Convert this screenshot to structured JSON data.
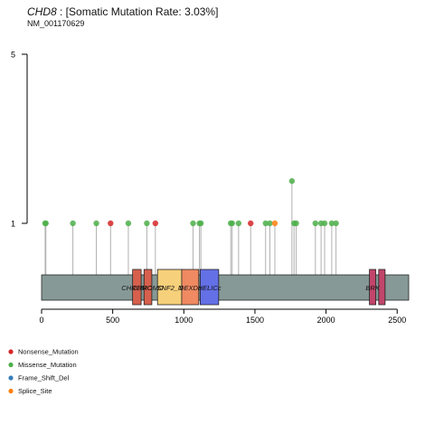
{
  "header": {
    "gene": "CHD8",
    "rate_text": ": [Somatic Mutation Rate: 3.03%]",
    "transcript": "NM_001170629"
  },
  "chart_data": {
    "type": "lollipop",
    "xlim": [
      0,
      2581
    ],
    "x_ticks": [
      0,
      500,
      1000,
      1500,
      2000,
      2500
    ],
    "y_ticks": [
      1,
      5
    ],
    "ylim": [
      0,
      5
    ],
    "legend": [
      {
        "name": "Nonsense_Mutation",
        "color": "#d62728"
      },
      {
        "name": "Missense_Mutation",
        "color": "#4daf4a"
      },
      {
        "name": "Frame_Shift_Del",
        "color": "#377eb8"
      },
      {
        "name": "Splice_Site",
        "color": "#ff7f0e"
      }
    ],
    "legend_position": "bottom-left",
    "domains": [
      {
        "name": "CHROMO",
        "start": 640,
        "end": 700,
        "color": "#d6604d"
      },
      {
        "name": "CHROMO",
        "start": 720,
        "end": 775,
        "color": "#d6604d"
      },
      {
        "name": "SNF2_N",
        "start": 815,
        "end": 990,
        "color": "#f6d07a"
      },
      {
        "name": "DEXDc",
        "start": 985,
        "end": 1105,
        "color": "#ef8a62"
      },
      {
        "name": "HELICc",
        "start": 1115,
        "end": 1245,
        "color": "#6470e6"
      },
      {
        "name": "BRK",
        "start": 2305,
        "end": 2350,
        "color": "#c2456b"
      },
      {
        "name": "",
        "start": 2370,
        "end": 2415,
        "color": "#c2456b"
      }
    ],
    "mutations": [
      {
        "pos": 25,
        "count": 1,
        "type": "Missense_Mutation"
      },
      {
        "pos": 30,
        "count": 1,
        "type": "Missense_Mutation"
      },
      {
        "pos": 220,
        "count": 1,
        "type": "Missense_Mutation"
      },
      {
        "pos": 385,
        "count": 1,
        "type": "Missense_Mutation"
      },
      {
        "pos": 485,
        "count": 1,
        "type": "Nonsense_Mutation"
      },
      {
        "pos": 610,
        "count": 1,
        "type": "Missense_Mutation"
      },
      {
        "pos": 740,
        "count": 1,
        "type": "Missense_Mutation"
      },
      {
        "pos": 800,
        "count": 1,
        "type": "Nonsense_Mutation"
      },
      {
        "pos": 1065,
        "count": 1,
        "type": "Missense_Mutation"
      },
      {
        "pos": 1110,
        "count": 1,
        "type": "Missense_Mutation"
      },
      {
        "pos": 1120,
        "count": 1,
        "type": "Missense_Mutation"
      },
      {
        "pos": 1330,
        "count": 1,
        "type": "Missense_Mutation"
      },
      {
        "pos": 1340,
        "count": 1,
        "type": "Missense_Mutation"
      },
      {
        "pos": 1385,
        "count": 1,
        "type": "Missense_Mutation"
      },
      {
        "pos": 1470,
        "count": 1,
        "type": "Nonsense_Mutation"
      },
      {
        "pos": 1575,
        "count": 1,
        "type": "Missense_Mutation"
      },
      {
        "pos": 1605,
        "count": 1,
        "type": "Missense_Mutation"
      },
      {
        "pos": 1640,
        "count": 1,
        "type": "Splice_Site"
      },
      {
        "pos": 1760,
        "count": 2,
        "type": "Missense_Mutation"
      },
      {
        "pos": 1775,
        "count": 1,
        "type": "Missense_Mutation"
      },
      {
        "pos": 1790,
        "count": 1,
        "type": "Missense_Mutation"
      },
      {
        "pos": 1925,
        "count": 1,
        "type": "Missense_Mutation"
      },
      {
        "pos": 1965,
        "count": 1,
        "type": "Missense_Mutation"
      },
      {
        "pos": 1990,
        "count": 1,
        "type": "Missense_Mutation"
      },
      {
        "pos": 2040,
        "count": 1,
        "type": "Missense_Mutation"
      },
      {
        "pos": 2070,
        "count": 1,
        "type": "Missense_Mutation"
      }
    ]
  }
}
